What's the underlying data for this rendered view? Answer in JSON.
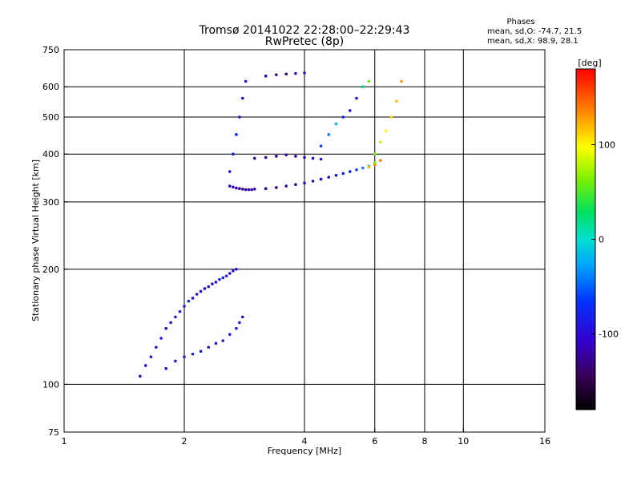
{
  "header": {
    "title": "Tromsø 20141022 22:28:00–22:29:43",
    "subtitle": "RwPretec (8p)",
    "phases_title": "Phases",
    "phases_o": "mean, sd,O: -74.7, 21.5",
    "phases_x": "mean, sd,X:  98.9, 28.1"
  },
  "colorbar": {
    "unit": "[deg]",
    "min": -180,
    "max": 180,
    "ticks": [
      {
        "value": 100,
        "label": "100"
      },
      {
        "value": 0,
        "label": "0"
      },
      {
        "value": -100,
        "label": "-100"
      }
    ]
  },
  "chart_data": {
    "type": "scatter",
    "title": "Tromsø 20141022 22:28:00–22:29:43",
    "subtitle": "RwPretec (8p)",
    "xlabel": "Frequency [MHz]",
    "ylabel": "Stationary phase Virtual Height [km]",
    "xscale": "log",
    "yscale": "log",
    "xlim": [
      1,
      16
    ],
    "ylim": [
      75,
      750
    ],
    "x_ticks": [
      {
        "value": 1,
        "label": "1"
      },
      {
        "value": 2,
        "label": "2"
      },
      {
        "value": 4,
        "label": "4"
      },
      {
        "value": 6,
        "label": "6"
      },
      {
        "value": 8,
        "label": "8"
      },
      {
        "value": 10,
        "label": "10"
      },
      {
        "value": 16,
        "label": "16"
      }
    ],
    "y_ticks": [
      {
        "value": 75,
        "label": "75"
      },
      {
        "value": 100,
        "label": "100"
      },
      {
        "value": 200,
        "label": "200"
      },
      {
        "value": 300,
        "label": "300"
      },
      {
        "value": 400,
        "label": "400"
      },
      {
        "value": 500,
        "label": "500"
      },
      {
        "value": 600,
        "label": "600"
      },
      {
        "value": 750,
        "label": "750"
      }
    ],
    "grid_x": [
      2,
      4,
      6,
      8,
      10
    ],
    "grid_y": [
      100,
      200,
      300,
      400,
      500,
      600
    ],
    "color_variable": "phase [deg]",
    "color_range": [
      -180,
      180
    ],
    "series": [
      {
        "x": [
          1.55,
          1.6,
          1.65,
          1.7,
          1.75,
          1.8,
          1.85,
          1.9,
          1.95,
          2.0,
          2.05,
          2.1,
          2.15,
          2.2,
          2.25,
          2.3,
          2.35,
          2.4,
          2.45,
          2.5,
          2.55,
          2.6,
          2.65,
          2.7
        ],
        "y": [
          105,
          112,
          118,
          125,
          132,
          140,
          145,
          150,
          155,
          160,
          165,
          168,
          172,
          175,
          178,
          180,
          183,
          185,
          188,
          190,
          192,
          195,
          198,
          200
        ],
        "phase": [
          -110,
          -105,
          -100,
          -95,
          -90,
          -110,
          -100,
          -95,
          -90,
          -85,
          -80,
          -100,
          -95,
          -90,
          -110,
          -100,
          -95,
          -90,
          -85,
          -80,
          -90,
          -95,
          -100,
          -105
        ]
      },
      {
        "x": [
          1.8,
          1.9,
          2.0,
          2.1,
          2.2,
          2.3,
          2.4,
          2.5,
          2.6,
          2.7,
          2.75,
          2.8
        ],
        "y": [
          110,
          115,
          118,
          120,
          122,
          125,
          128,
          130,
          135,
          140,
          145,
          150
        ],
        "phase": [
          -100,
          -95,
          -90,
          -85,
          -80,
          -100,
          -95,
          -90,
          -85,
          -90,
          -95,
          -100
        ]
      },
      {
        "x": [
          2.6,
          2.65,
          2.7,
          2.75,
          2.8,
          2.85,
          2.9,
          2.95,
          3.0,
          3.2,
          3.4,
          3.6,
          3.8,
          4.0,
          4.2,
          4.4,
          4.6,
          4.8,
          5.0,
          5.2,
          5.4,
          5.6,
          5.8,
          6.0
        ],
        "y": [
          330,
          328,
          326,
          325,
          324,
          323,
          323,
          323,
          324,
          325,
          327,
          330,
          333,
          336,
          340,
          344,
          348,
          352,
          356,
          360,
          364,
          368,
          372,
          380
        ],
        "phase": [
          -110,
          -115,
          -120,
          -125,
          -130,
          -125,
          -120,
          -115,
          -120,
          -125,
          -130,
          -120,
          -115,
          -110,
          -105,
          -100,
          -95,
          -90,
          -85,
          -80,
          -60,
          -40,
          -20,
          60
        ]
      },
      {
        "x": [
          2.6,
          2.65,
          2.7,
          2.75,
          2.8,
          2.85
        ],
        "y": [
          360,
          400,
          450,
          500,
          560,
          620
        ],
        "phase": [
          -90,
          -85,
          -80,
          -95,
          -100,
          -90
        ]
      },
      {
        "x": [
          3.0,
          3.2,
          3.4,
          3.6,
          3.8,
          4.0,
          4.2,
          4.4
        ],
        "y": [
          390,
          392,
          395,
          398,
          395,
          392,
          390,
          388
        ],
        "phase": [
          -130,
          -125,
          -120,
          -115,
          -110,
          -105,
          -100,
          -95
        ]
      },
      {
        "x": [
          3.2,
          3.4,
          3.6,
          3.8,
          4.0
        ],
        "y": [
          640,
          645,
          648,
          650,
          652
        ],
        "phase": [
          -120,
          -130,
          -140,
          -110,
          -100
        ]
      },
      {
        "x": [
          4.4,
          4.6,
          4.8,
          5.0,
          5.2,
          5.4,
          5.6,
          5.8
        ],
        "y": [
          420,
          450,
          480,
          500,
          520,
          560,
          600,
          620
        ],
        "phase": [
          -60,
          -40,
          -20,
          -80,
          -90,
          -100,
          20,
          60
        ]
      },
      {
        "x": [
          6.0,
          6.2,
          6.4,
          6.6,
          6.8,
          7.0
        ],
        "y": [
          400,
          430,
          460,
          500,
          550,
          620
        ],
        "phase": [
          60,
          80,
          100,
          110,
          120,
          130
        ]
      },
      {
        "x": [
          5.8,
          6.0,
          6.2
        ],
        "y": [
          370,
          375,
          385
        ],
        "phase": [
          120,
          130,
          140
        ]
      }
    ]
  }
}
